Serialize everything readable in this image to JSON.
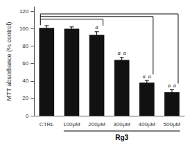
{
  "chart_data": {
    "type": "bar",
    "categories": [
      "CTRL",
      "100μM",
      "200μM",
      "300μM",
      "400μM",
      "500μM"
    ],
    "values": [
      101,
      100,
      93,
      64,
      38,
      27
    ],
    "errors": [
      2.5,
      2.0,
      3.5,
      3.0,
      2.5,
      3.0
    ],
    "color": "#111111",
    "ylabel": "MTT absorbance (% control)",
    "ylim": [
      0,
      125
    ],
    "yticks": [
      0,
      20,
      40,
      60,
      80,
      100,
      120
    ],
    "grid": false,
    "annotations": [
      {
        "text": "a",
        "category": "200μM"
      },
      {
        "text": "a  a",
        "category": "300μM"
      },
      {
        "text": "a  a",
        "category": "400μM"
      },
      {
        "text": "a  a",
        "category": "500μM"
      }
    ],
    "brackets": [
      {
        "from": "CTRL",
        "to": "200μM",
        "y": 111
      },
      {
        "from": "CTRL",
        "to": "400μM",
        "y": 114
      },
      {
        "from": "CTRL",
        "to": "500μM",
        "y": 117
      }
    ],
    "group_label": {
      "text": "Rg3",
      "from": "100μM",
      "to": "500μM"
    }
  }
}
